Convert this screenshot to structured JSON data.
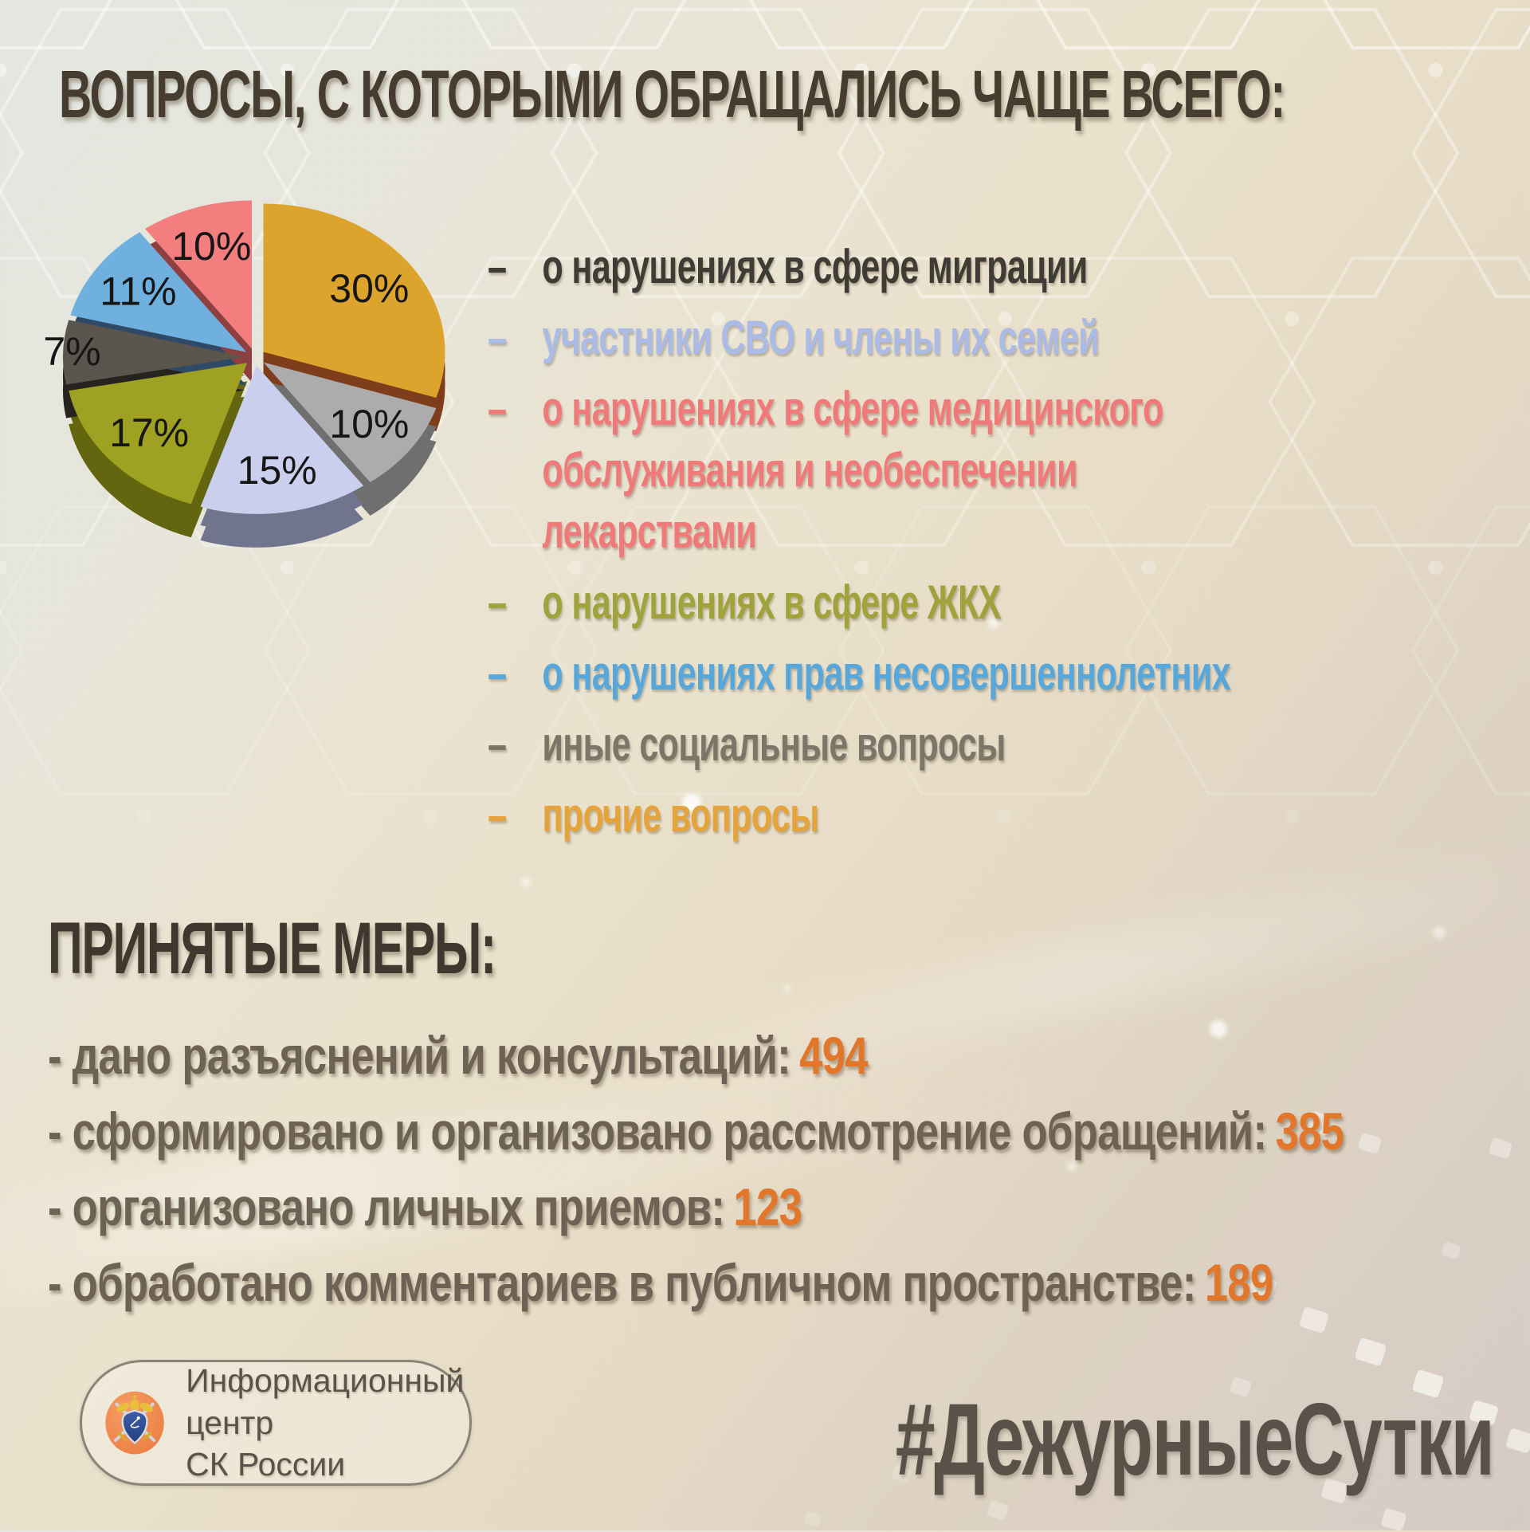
{
  "title": "ВОПРОСЫ, С КОТОРЫМИ ОБРАЩАЛИСЬ ЧАЩЕ ВСЕГО:",
  "chart_data": {
    "type": "pie",
    "style": "3d-exploded",
    "start_angle_deg": 0,
    "direction": "clockwise",
    "slices": [
      {
        "label": "прочие вопросы",
        "value": 30,
        "percent": "30%",
        "color": "#dca42c",
        "side": "#7e3d1b"
      },
      {
        "label": "иные социальные вопросы",
        "value": 10,
        "percent": "10%",
        "color": "#acacac",
        "side": "#6f6f6f"
      },
      {
        "label": "участники СВО и члены их семей",
        "value": 15,
        "percent": "15%",
        "color": "#c9cfec",
        "side": "#70748c"
      },
      {
        "label": "о нарушениях в сфере ЖКХ",
        "value": 17,
        "percent": "17%",
        "color": "#9fa122",
        "side": "#63650f"
      },
      {
        "label": "о нарушениях в сфере миграции",
        "value": 7,
        "percent": "7%",
        "color": "#5a564e",
        "side": "#26241f"
      },
      {
        "label": "о нарушениях прав несовершеннолетних",
        "value": 11,
        "percent": "11%",
        "color": "#6fb0de",
        "side": "#2f4a66"
      },
      {
        "label": "о нарушениях в сфере медицинского обслуживания и необеспечении лекарствами",
        "value": 10,
        "percent": "10%",
        "color": "#f27e7e",
        "side": "#8e4040"
      }
    ]
  },
  "legend": {
    "items": [
      {
        "label": "о нарушениях в сфере миграции",
        "color": "#3f3b35"
      },
      {
        "label": "участники СВО и члены их семей",
        "color": "#acbbe5"
      },
      {
        "label": "о нарушениях в сфере медицинского обслуживания и необеспечении лекарствами",
        "color": "#f07a7a"
      },
      {
        "label": "о нарушениях в сфере ЖКХ",
        "color": "#a0a23b"
      },
      {
        "label": "о нарушениях прав несовершеннолетних",
        "color": "#57a7da"
      },
      {
        "label": "иные социальные вопросы",
        "color": "#7c7568"
      },
      {
        "label": "прочие вопросы",
        "color": "#e5a33b"
      }
    ]
  },
  "measures": {
    "heading": "ПРИНЯТЫЕ МЕРЫ:",
    "value_color": "#e2762a",
    "items": [
      {
        "label": "- дано разъяснений и консультаций:",
        "value": "494"
      },
      {
        "label": "- сформировано и организовано рассмотрение обращений:",
        "value": "385"
      },
      {
        "label": "- организовано личных приемов:",
        "value": "123"
      },
      {
        "label": "- обработано комментариев в публичном пространстве:",
        "value": "189"
      }
    ]
  },
  "footer": {
    "logo_line1": "Информационный центр",
    "logo_line2": "СК России",
    "hashtag": "#ДежурныеСутки"
  }
}
